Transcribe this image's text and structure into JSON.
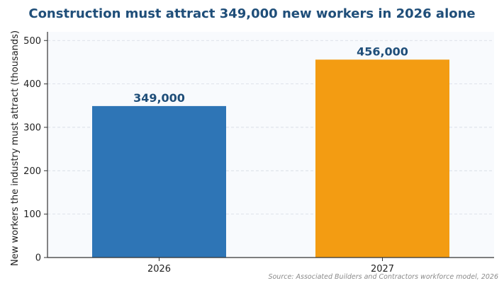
{
  "chart_data": {
    "type": "bar",
    "title": "Construction must attract 349,000 new workers in 2026 alone",
    "xlabel": "",
    "ylabel": "New workers the industry must attract (thousands)",
    "categories": [
      "2026",
      "2027"
    ],
    "values": [
      349,
      456
    ],
    "data_labels": [
      "349,000",
      "456,000"
    ],
    "bar_colors": [
      "#2e75b6",
      "#f39c12"
    ],
    "ylim": [
      0,
      520
    ],
    "yticks": [
      0,
      100,
      200,
      300,
      400,
      500
    ],
    "grid": true,
    "legend": "none"
  },
  "source_note": "Source: Associated Builders and Contractors workforce model, 2026",
  "colors": {
    "title": "#1f4e79",
    "data_label": "#1f4e79",
    "plot_background": "#f8fafd",
    "axis": "#333333"
  }
}
